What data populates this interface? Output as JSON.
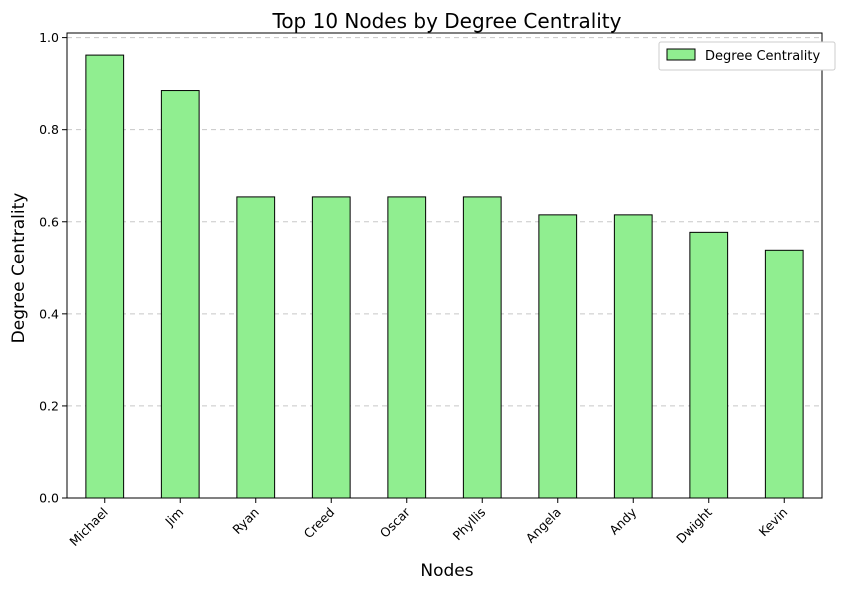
{
  "chart_data": {
    "type": "bar",
    "title": "Top 10 Nodes by Degree Centrality",
    "xlabel": "Nodes",
    "ylabel": "Degree Centrality",
    "categories": [
      "Michael",
      "Jim",
      "Ryan",
      "Creed",
      "Oscar",
      "Phyllis",
      "Angela",
      "Andy",
      "Dwight",
      "Kevin"
    ],
    "series": [
      {
        "name": "Degree Centrality",
        "values": [
          0.962,
          0.885,
          0.654,
          0.654,
          0.654,
          0.654,
          0.615,
          0.615,
          0.577,
          0.538
        ]
      }
    ],
    "ylim": [
      0,
      1.01
    ],
    "yticks": [
      0.0,
      0.2,
      0.4,
      0.6,
      0.8,
      1.0
    ],
    "ytick_labels": [
      "0.0",
      "0.2",
      "0.4",
      "0.6",
      "0.8",
      "1.0"
    ],
    "grid": "y-dashed",
    "legend_position": "top-right",
    "colors": {
      "bar_fill": "#90ee90",
      "bar_edge": "#000000",
      "grid": "#c8c8c8"
    }
  }
}
